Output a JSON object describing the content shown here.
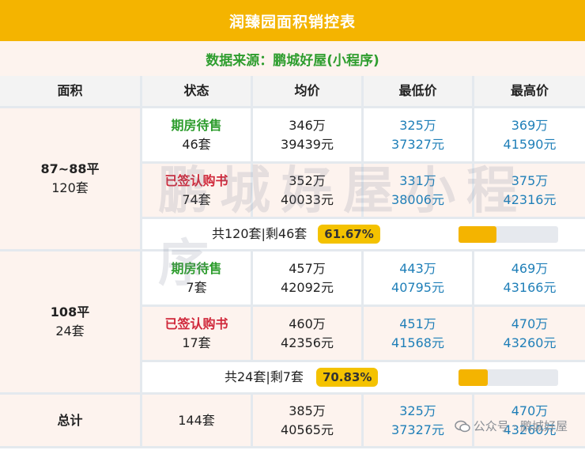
{
  "title": "润臻园面积销控表",
  "source": "数据来源：鹏城好屋(小程序)",
  "headers": [
    "面积",
    "状态",
    "均价",
    "最低价",
    "最高价"
  ],
  "groups": [
    {
      "area": "87~88平",
      "units": "120套",
      "rows": [
        {
          "status": "期房待售",
          "count": "46套",
          "avg_total": "346万",
          "avg_unit": "39439元",
          "min_total": "325万",
          "min_unit": "37327元",
          "max_total": "369万",
          "max_unit": "41590元"
        },
        {
          "status": "已签认购书",
          "count": "74套",
          "avg_total": "352万",
          "avg_unit": "40033元",
          "min_total": "331万",
          "min_unit": "38006元",
          "max_total": "375万",
          "max_unit": "42316元"
        }
      ],
      "summary": "共120套|剩46套",
      "percent_label": "61.67%",
      "remaining_fraction": 0.3833
    },
    {
      "area": "108平",
      "units": "24套",
      "rows": [
        {
          "status": "期房待售",
          "count": "7套",
          "avg_total": "457万",
          "avg_unit": "42092元",
          "min_total": "443万",
          "min_unit": "40795元",
          "max_total": "469万",
          "max_unit": "43166元"
        },
        {
          "status": "已签认购书",
          "count": "17套",
          "avg_total": "460万",
          "avg_unit": "42356元",
          "min_total": "451万",
          "min_unit": "41568元",
          "max_total": "470万",
          "max_unit": "43260元"
        }
      ],
      "summary": "共24套|剩7套",
      "percent_label": "70.83%",
      "remaining_fraction": 0.2917
    }
  ],
  "total": {
    "label": "总计",
    "units": "144套",
    "avg_total": "385万",
    "avg_unit": "40565元",
    "min_total": "325万",
    "min_unit": "37327元",
    "max_total": "470万",
    "max_unit": "43260元"
  },
  "watermark_text": "鹏城好屋小程序",
  "footer": "公众号 · 鹏城好屋",
  "colors": {
    "accent": "#f4b400",
    "status_sale": "#2e9d2e",
    "status_signed": "#d0283a",
    "price_blue": "#1f7fb8",
    "row_pink": "#fdf3ee"
  }
}
